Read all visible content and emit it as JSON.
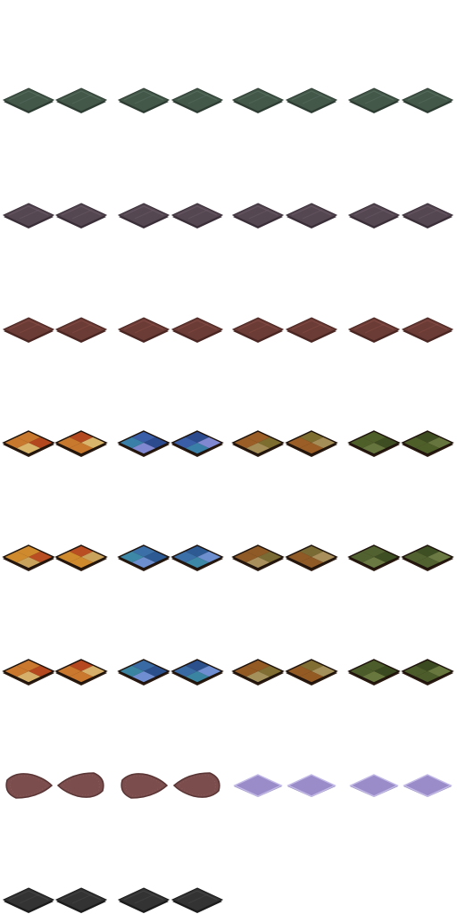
{
  "sheet": {
    "type": "isometric-floor-tile-spritesheet",
    "background": "#ffffff",
    "grid": {
      "columns": 8,
      "rows": 8
    }
  },
  "tile_rows": [
    {
      "name": "row-green-slabs",
      "style": "solid",
      "colors": {
        "base": "#44584a",
        "dark": "#2e3d33",
        "light": "#5b7263"
      },
      "count": 8
    },
    {
      "name": "row-gray-purple-slabs",
      "style": "solid",
      "colors": {
        "base": "#554752",
        "dark": "#3a2f38",
        "light": "#6c5c69"
      },
      "count": 8
    },
    {
      "name": "row-brown-red-slabs",
      "style": "solid",
      "colors": {
        "base": "#6b3b35",
        "dark": "#4a2622",
        "light": "#8a5048"
      },
      "count": 8
    },
    {
      "name": "row-patterned-a",
      "style": "quad",
      "count": 8,
      "sets": [
        {
          "name": "orange-sand",
          "c": [
            "#c8792e",
            "#b3481f",
            "#d9b56c",
            "#c8792e"
          ]
        },
        {
          "name": "blue",
          "c": [
            "#3a5fa8",
            "#2c4b8f",
            "#7f88d0",
            "#3a7fa8"
          ]
        },
        {
          "name": "brown-olive",
          "c": [
            "#9b5e26",
            "#7d6d2f",
            "#a58d57",
            "#9b5e26"
          ]
        },
        {
          "name": "green",
          "c": [
            "#4f5f2a",
            "#3e4d22",
            "#66753d",
            "#4f5f2a"
          ]
        }
      ]
    },
    {
      "name": "row-patterned-b",
      "style": "quad",
      "count": 8,
      "sets": [
        {
          "name": "orange-sand",
          "c": [
            "#d08a2e",
            "#b94e22",
            "#c9a25c",
            "#d08a2e"
          ]
        },
        {
          "name": "blue",
          "c": [
            "#3b6fa8",
            "#2d5a92",
            "#6d8fd0",
            "#3d88a6"
          ]
        },
        {
          "name": "brown-olive",
          "c": [
            "#8f5a26",
            "#7a6b34",
            "#a88f5c",
            "#8f5a26"
          ]
        },
        {
          "name": "green",
          "c": [
            "#516230",
            "#3f4f24",
            "#6a7a42",
            "#516230"
          ]
        }
      ]
    },
    {
      "name": "row-patterned-c",
      "style": "quad",
      "count": 8,
      "sets": [
        {
          "name": "orange-sand",
          "c": [
            "#c9782d",
            "#b5481e",
            "#d6b06a",
            "#c9782d"
          ]
        },
        {
          "name": "blue",
          "c": [
            "#3a6aa3",
            "#2b508c",
            "#6e8ed1",
            "#3a84a1"
          ]
        },
        {
          "name": "brown-olive",
          "c": [
            "#945a24",
            "#806e33",
            "#a4905a",
            "#945a24"
          ]
        },
        {
          "name": "green",
          "c": [
            "#4c5c2a",
            "#3b4a20",
            "#67773d",
            "#4c5c2a"
          ]
        }
      ]
    },
    {
      "name": "row-rugs-and-lilac",
      "style": "mixed",
      "count": 8,
      "items": [
        {
          "name": "mauve-rug-left",
          "kind": "rug",
          "color": "#7b4d4d",
          "edge": "#5a3535"
        },
        {
          "name": "mauve-rug-right",
          "kind": "rug",
          "color": "#7b4d4d",
          "edge": "#5a3535"
        },
        {
          "name": "mauve-rug-left-2",
          "kind": "rug",
          "color": "#7b4d4d",
          "edge": "#5a3535"
        },
        {
          "name": "mauve-rug-right-2",
          "kind": "rug",
          "color": "#7b4d4d",
          "edge": "#5a3535"
        },
        {
          "name": "lilac-mat-1",
          "kind": "mat",
          "color": "#9a8cc8",
          "edge": "#c3b9e6"
        },
        {
          "name": "lilac-mat-2",
          "kind": "mat",
          "color": "#9a8cc8",
          "edge": "#c3b9e6"
        },
        {
          "name": "lilac-mat-3",
          "kind": "mat",
          "color": "#9a8cc8",
          "edge": "#c3b9e6"
        },
        {
          "name": "lilac-mat-4",
          "kind": "mat",
          "color": "#9a8cc8",
          "edge": "#c3b9e6"
        }
      ]
    },
    {
      "name": "row-charcoal-slabs",
      "style": "solid",
      "colors": {
        "base": "#333333",
        "dark": "#1c1c1c",
        "light": "#4a4a4a"
      },
      "count": 4
    }
  ]
}
